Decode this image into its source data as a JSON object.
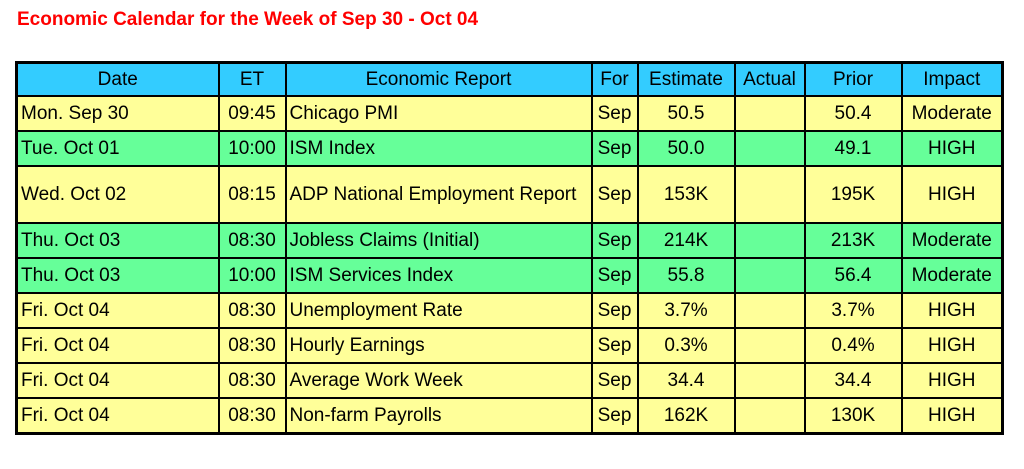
{
  "title": "Economic Calendar for the Week of Sep 30 - Oct 04",
  "headers": {
    "date": "Date",
    "et": "ET",
    "report": "Economic Report",
    "for": "For",
    "estimate": "Estimate",
    "actual": "Actual",
    "prior": "Prior",
    "impact": "Impact"
  },
  "colors": {
    "title": "#ff0000",
    "header_bg": "#33ccff",
    "row_yellow": "#ffff99",
    "row_green": "#66ff99"
  },
  "rows": [
    {
      "date": "Mon. Sep 30",
      "et": "09:45",
      "report": "Chicago PMI",
      "for": "Sep",
      "estimate": "50.5",
      "actual": "",
      "prior": "50.4",
      "impact": "Moderate",
      "color": "yellow"
    },
    {
      "date": "Tue. Oct 01",
      "et": "10:00",
      "report": "ISM Index",
      "for": "Sep",
      "estimate": "50.0",
      "actual": "",
      "prior": "49.1",
      "impact": "HIGH",
      "color": "green"
    },
    {
      "date": "Wed. Oct 02",
      "et": "08:15",
      "report": "ADP National Employment Report",
      "for": "Sep",
      "estimate": "153K",
      "actual": "",
      "prior": "195K",
      "impact": "HIGH",
      "color": "yellow"
    },
    {
      "date": "Thu. Oct 03",
      "et": "08:30",
      "report": "Jobless Claims (Initial)",
      "for": "Sep",
      "estimate": "214K",
      "actual": "",
      "prior": "213K",
      "impact": "Moderate",
      "color": "green"
    },
    {
      "date": "Thu. Oct 03",
      "et": "10:00",
      "report": "ISM Services Index",
      "for": "Sep",
      "estimate": "55.8",
      "actual": "",
      "prior": "56.4",
      "impact": "Moderate",
      "color": "green"
    },
    {
      "date": "Fri. Oct 04",
      "et": "08:30",
      "report": "Unemployment Rate",
      "for": "Sep",
      "estimate": "3.7%",
      "actual": "",
      "prior": "3.7%",
      "impact": "HIGH",
      "color": "yellow"
    },
    {
      "date": "Fri. Oct 04",
      "et": "08:30",
      "report": "Hourly Earnings",
      "for": "Sep",
      "estimate": "0.3%",
      "actual": "",
      "prior": "0.4%",
      "impact": "HIGH",
      "color": "yellow"
    },
    {
      "date": "Fri. Oct 04",
      "et": "08:30",
      "report": "Average Work Week",
      "for": "Sep",
      "estimate": "34.4",
      "actual": "",
      "prior": "34.4",
      "impact": "HIGH",
      "color": "yellow"
    },
    {
      "date": "Fri. Oct 04",
      "et": "08:30",
      "report": "Non-farm Payrolls",
      "for": "Sep",
      "estimate": "162K",
      "actual": "",
      "prior": "130K",
      "impact": "HIGH",
      "color": "yellow"
    }
  ]
}
